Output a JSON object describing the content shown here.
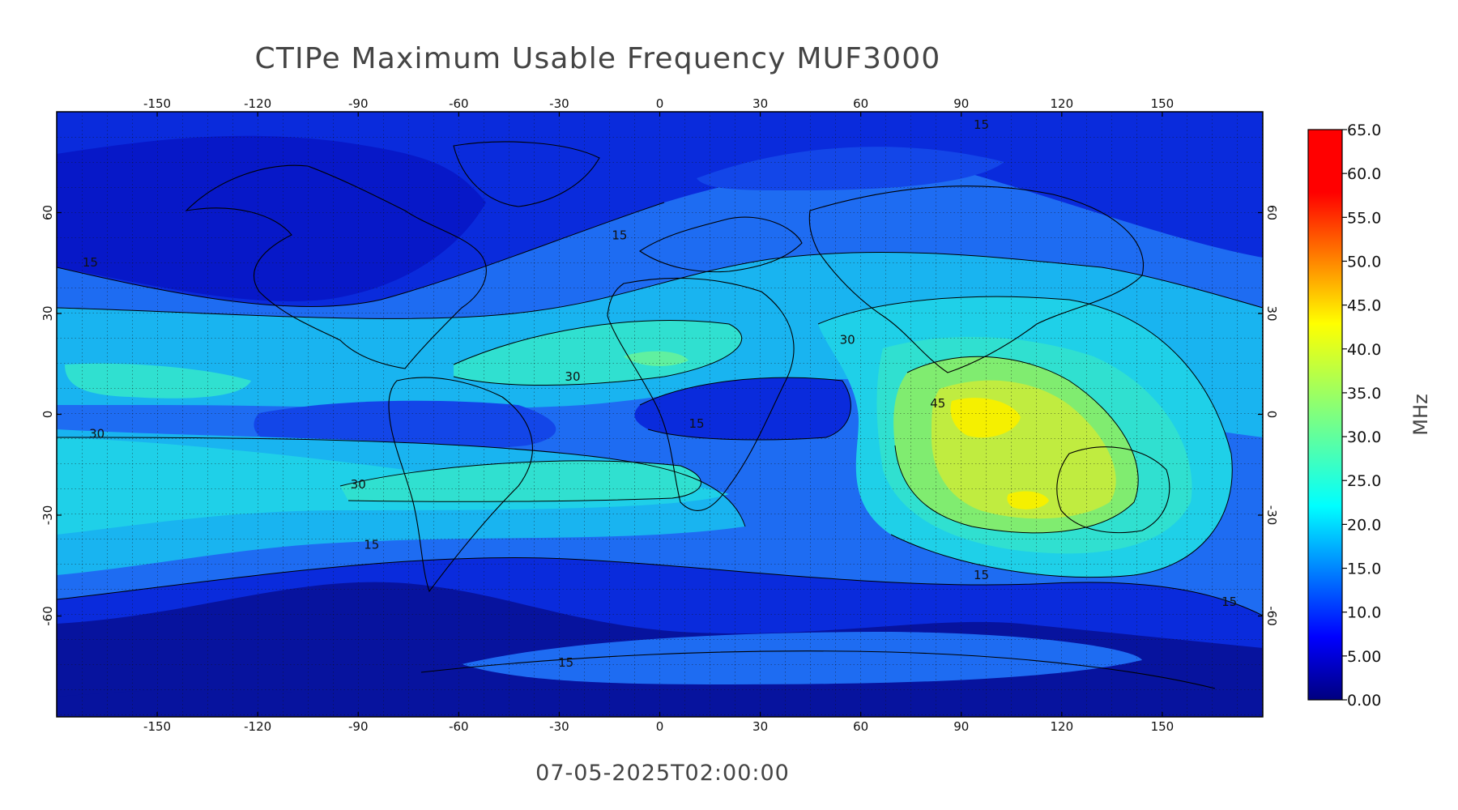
{
  "title": "CTIPe Maximum Usable Frequency MUF3000",
  "timestamp": "07-05-2025T02:00:00",
  "colorbar": {
    "unit": "MHz",
    "range": [
      0,
      65
    ],
    "ticks": [
      "0.00",
      "5.00",
      "10.0",
      "15.0",
      "20.0",
      "25.0",
      "30.0",
      "35.0",
      "40.0",
      "45.0",
      "50.0",
      "55.0",
      "60.0",
      "65.0"
    ]
  },
  "axes": {
    "lon_range": [
      -180,
      180
    ],
    "lat_range": [
      -90,
      90
    ],
    "lon_ticks": [
      "-150",
      "-120",
      "-90",
      "-60",
      "-30",
      "0",
      "30",
      "60",
      "90",
      "120",
      "150"
    ],
    "lat_ticks": [
      "60",
      "30",
      "0",
      "-30",
      "-60"
    ],
    "grid": true
  },
  "contour_labels": [
    {
      "text": "15",
      "lon": 96,
      "lat": 85
    },
    {
      "text": "15",
      "lon": -170,
      "lat": 44
    },
    {
      "text": "15",
      "lon": -12,
      "lat": 52
    },
    {
      "text": "30",
      "lon": -26,
      "lat": 10
    },
    {
      "text": "30",
      "lon": 56,
      "lat": 21
    },
    {
      "text": "45",
      "lon": 83,
      "lat": 2
    },
    {
      "text": "15",
      "lon": 11,
      "lat": -4
    },
    {
      "text": "30",
      "lon": -168,
      "lat": -7
    },
    {
      "text": "30",
      "lon": -90,
      "lat": -22
    },
    {
      "text": "15",
      "lon": -86,
      "lat": -40
    },
    {
      "text": "15",
      "lon": 96,
      "lat": -49
    },
    {
      "text": "15",
      "lon": 170,
      "lat": -57
    },
    {
      "text": "15",
      "lon": -28,
      "lat": -75
    }
  ]
}
